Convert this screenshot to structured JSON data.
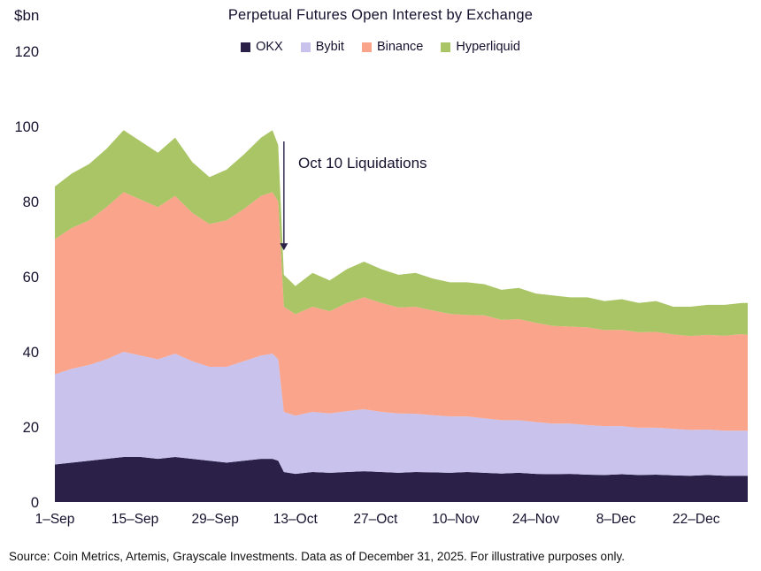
{
  "title": "Perpetual Futures Open Interest by Exchange",
  "y_unit_label": "$bn",
  "source": "Source: Coin Metrics, Artemis, Grayscale Investments. Data as of December 31, 2025. For illustrative purposes only.",
  "chart_data": {
    "type": "area",
    "stacked": true,
    "title": "Perpetual Futures Open Interest by Exchange",
    "ylabel": "$bn",
    "ylim": [
      0,
      120
    ],
    "y_ticks": [
      0,
      20,
      40,
      60,
      80,
      100,
      120
    ],
    "grid": false,
    "legend_position": "top",
    "x_unit": "days since 1-Sep-2025",
    "x": [
      0,
      3,
      6,
      9,
      12,
      15,
      18,
      21,
      24,
      27,
      30,
      33,
      36,
      38,
      39,
      40,
      42,
      45,
      48,
      51,
      54,
      57,
      60,
      63,
      66,
      69,
      72,
      75,
      78,
      81,
      84,
      87,
      90,
      93,
      96,
      99,
      102,
      105,
      108,
      111,
      114,
      117,
      120,
      121
    ],
    "x_ticks": [
      {
        "day": 0,
        "label": "1–Sep"
      },
      {
        "day": 14,
        "label": "15–Sep"
      },
      {
        "day": 28,
        "label": "29–Sep"
      },
      {
        "day": 42,
        "label": "13–Oct"
      },
      {
        "day": 56,
        "label": "27–Oct"
      },
      {
        "day": 70,
        "label": "10–Nov"
      },
      {
        "day": 84,
        "label": "24–Nov"
      },
      {
        "day": 98,
        "label": "8–Dec"
      },
      {
        "day": 112,
        "label": "22–Dec"
      }
    ],
    "series": [
      {
        "name": "OKX",
        "color": "#2a2048",
        "values": [
          10,
          10.5,
          11,
          11.5,
          12,
          12,
          11.5,
          12,
          11.5,
          11,
          10.5,
          11,
          11.5,
          11.5,
          11,
          8,
          7.5,
          8,
          7.8,
          8,
          8.2,
          8,
          7.8,
          8,
          7.9,
          7.8,
          8,
          7.8,
          7.6,
          7.8,
          7.5,
          7.4,
          7.5,
          7.3,
          7.2,
          7.4,
          7.2,
          7.3,
          7.1,
          7,
          7.2,
          7,
          7,
          7
        ]
      },
      {
        "name": "Bybit",
        "color": "#c8c2ec",
        "values": [
          24,
          25,
          25.5,
          26.5,
          28,
          27,
          26.5,
          27.5,
          26,
          25,
          25.5,
          26.5,
          27.5,
          28,
          27,
          16,
          15.5,
          16,
          15.8,
          16.2,
          16.5,
          16,
          15.8,
          15.5,
          15.2,
          15,
          14.8,
          14.5,
          14.2,
          14,
          13.8,
          13.5,
          13.4,
          13.2,
          13,
          12.8,
          12.6,
          12.5,
          12.4,
          12.2,
          12.1,
          12,
          12,
          12
        ]
      },
      {
        "name": "Binance",
        "color": "#f9a48b",
        "values": [
          36,
          37.5,
          38.5,
          40.5,
          42.5,
          41.5,
          40.5,
          42,
          39.5,
          38,
          39,
          40.5,
          42.5,
          43,
          42,
          28,
          27,
          28,
          27.2,
          28.8,
          29.8,
          29,
          28.2,
          28.5,
          27.9,
          27.3,
          27,
          27.4,
          26.7,
          26.9,
          26.4,
          26,
          25.8,
          26,
          25.6,
          25.6,
          25.4,
          25.5,
          25.1,
          25,
          25.2,
          25.3,
          25.7,
          25.5
        ]
      },
      {
        "name": "Hyperliquid",
        "color": "#aac566",
        "values": [
          14,
          14.5,
          15,
          15.5,
          16.5,
          15.5,
          14.5,
          15.5,
          13.5,
          12.5,
          13.5,
          14.5,
          15.5,
          16.5,
          15,
          8.5,
          7.5,
          9,
          8.2,
          9,
          9.5,
          9,
          8.7,
          9,
          8.5,
          8.4,
          8.7,
          8.3,
          8,
          8.3,
          7.8,
          8.1,
          7.8,
          8,
          7.7,
          8.2,
          7.8,
          8.2,
          7.4,
          7.8,
          8,
          8.2,
          8.3,
          8.5
        ]
      }
    ],
    "annotation": {
      "text": "Oct 10 Liquidations",
      "arrow_day": 40,
      "arrow_from_value": 96,
      "arrow_to_value": 67,
      "text_day": 42.5,
      "text_value": 89
    }
  }
}
